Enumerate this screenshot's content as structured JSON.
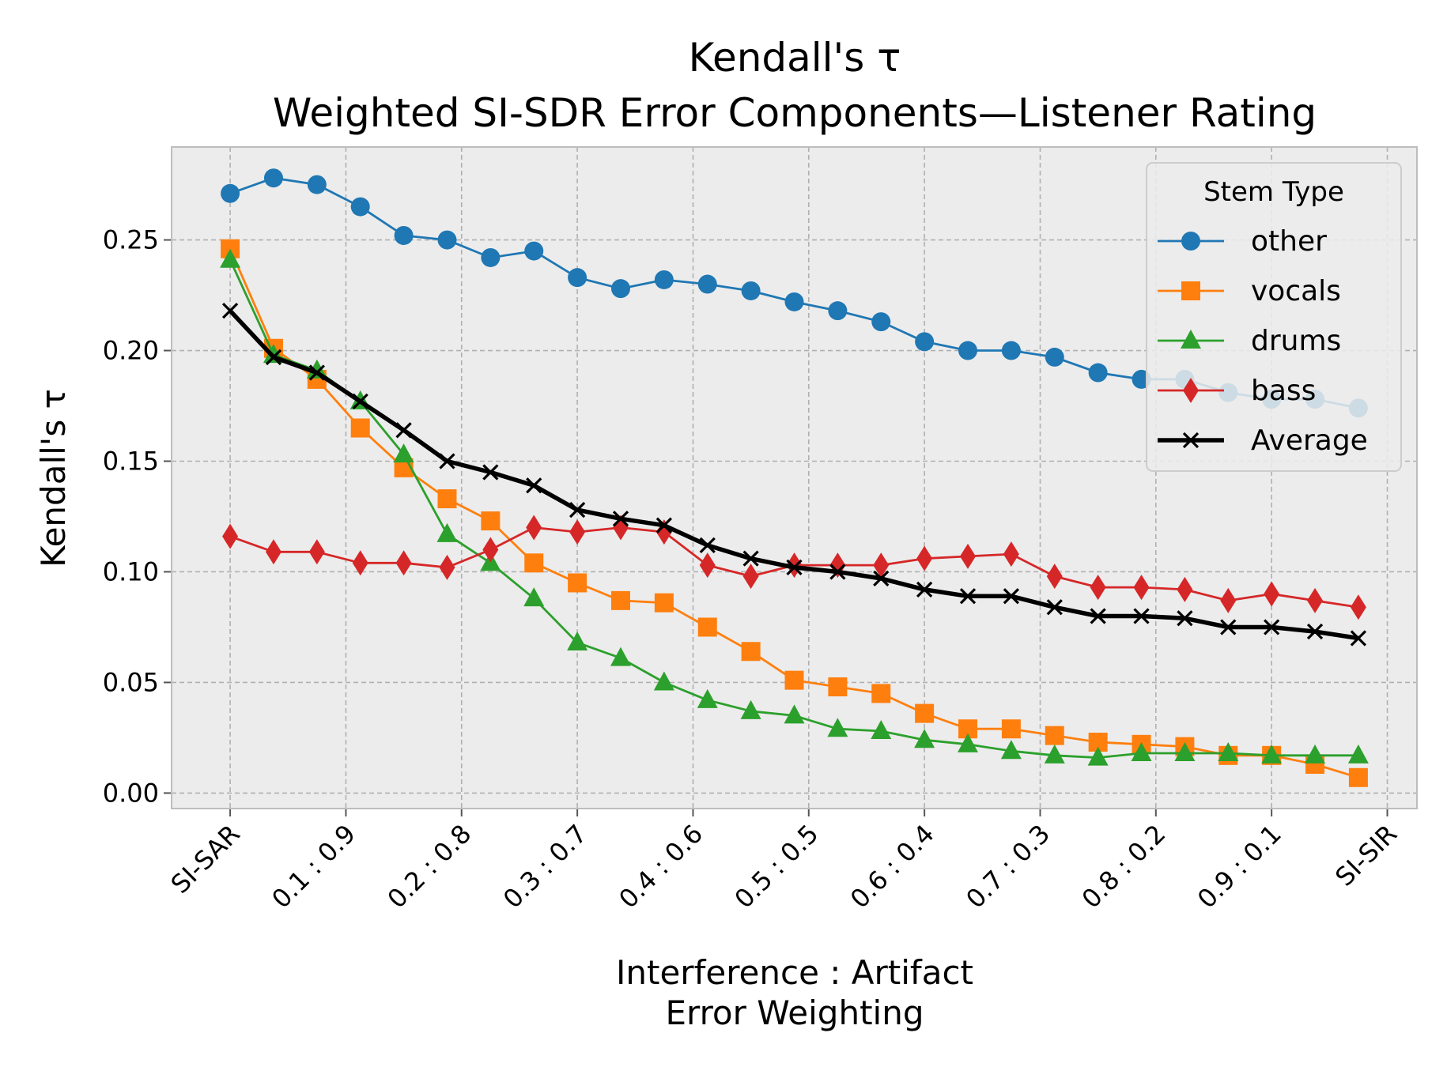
{
  "chart_data": {
    "type": "line",
    "title": [
      "Kendall's τ",
      "Weighted SI-SDR Error Components—Listener Rating"
    ],
    "xlabel": [
      "Interference : Artifact",
      "Error Weighting"
    ],
    "ylabel": "Kendall's τ",
    "x_count": 27,
    "x_tick_positions": [
      0,
      2.667,
      5.333,
      8,
      10.667,
      13.333,
      16,
      18.667,
      21.333,
      24,
      26.667
    ],
    "x_tick_labels": [
      "SI-SAR",
      "0.1 : 0.9",
      "0.2 : 0.8",
      "0.3 : 0.7",
      "0.4 : 0.6",
      "0.5 : 0.5",
      "0.6 : 0.4",
      "0.7 : 0.3",
      "0.8 : 0.2",
      "0.9 : 0.1",
      "SI-SIR"
    ],
    "xlim": [
      -1.35,
      27.35
    ],
    "ylim": [
      -0.007,
      0.292
    ],
    "y_ticks": [
      0.0,
      0.05,
      0.1,
      0.15,
      0.2,
      0.25
    ],
    "y_tick_labels": [
      "0.00",
      "0.05",
      "0.10",
      "0.15",
      "0.20",
      "0.25"
    ],
    "grid": true,
    "legend": {
      "title": "Stem Type",
      "position": "top-right"
    },
    "series": [
      {
        "name": "other",
        "color": "#1f77b4",
        "marker": "circle",
        "values": [
          0.271,
          0.278,
          0.275,
          0.265,
          0.252,
          0.25,
          0.242,
          0.245,
          0.233,
          0.228,
          0.232,
          0.23,
          0.227,
          0.222,
          0.218,
          0.213,
          0.204,
          0.2,
          0.2,
          0.197,
          0.19,
          0.187,
          0.187,
          0.181,
          0.178,
          0.178,
          0.174
        ]
      },
      {
        "name": "vocals",
        "color": "#ff7f0e",
        "marker": "square",
        "values": [
          0.246,
          0.201,
          0.187,
          0.165,
          0.147,
          0.133,
          0.123,
          0.104,
          0.095,
          0.087,
          0.086,
          0.075,
          0.064,
          0.051,
          0.048,
          0.045,
          0.036,
          0.029,
          0.029,
          0.026,
          0.023,
          0.022,
          0.021,
          0.017,
          0.017,
          0.013,
          0.007
        ]
      },
      {
        "name": "drums",
        "color": "#2ca02c",
        "marker": "triangle",
        "values": [
          0.241,
          0.198,
          0.191,
          0.177,
          0.153,
          0.117,
          0.104,
          0.088,
          0.068,
          0.061,
          0.05,
          0.042,
          0.037,
          0.035,
          0.029,
          0.028,
          0.024,
          0.022,
          0.019,
          0.017,
          0.016,
          0.018,
          0.018,
          0.018,
          0.017,
          0.017,
          0.017
        ]
      },
      {
        "name": "bass",
        "color": "#d62728",
        "marker": "diamond",
        "values": [
          0.116,
          0.109,
          0.109,
          0.104,
          0.104,
          0.102,
          0.11,
          0.12,
          0.118,
          0.12,
          0.118,
          0.103,
          0.098,
          0.103,
          0.103,
          0.103,
          0.106,
          0.107,
          0.108,
          0.098,
          0.093,
          0.093,
          0.092,
          0.087,
          0.09,
          0.087,
          0.084
        ]
      },
      {
        "name": "Average",
        "color": "#000000",
        "marker": "x",
        "bold": true,
        "values": [
          0.218,
          0.197,
          0.19,
          0.177,
          0.164,
          0.15,
          0.145,
          0.139,
          0.128,
          0.124,
          0.121,
          0.112,
          0.106,
          0.102,
          0.1,
          0.097,
          0.092,
          0.089,
          0.089,
          0.084,
          0.08,
          0.08,
          0.079,
          0.075,
          0.075,
          0.073,
          0.07
        ]
      }
    ]
  }
}
